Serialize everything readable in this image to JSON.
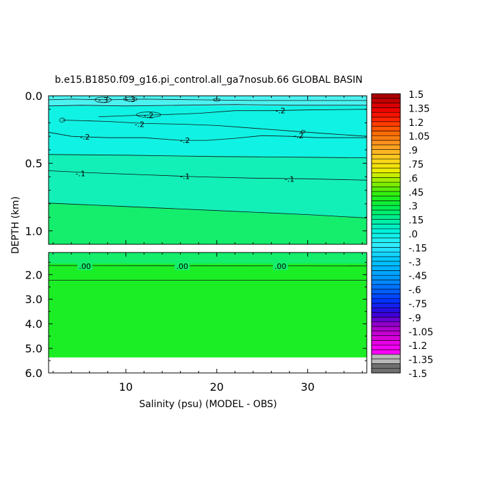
{
  "chart_data": {
    "type": "heatmap",
    "title": "b.e15.B1850.f09_g16.pi_control.all_ga7nosub.66 GLOBAL BASIN",
    "xlabel": "Salinity (psu) (MODEL - OBS)",
    "ylabel": "DEPTH (km)",
    "x_ticks": [
      "10",
      "20",
      "30"
    ],
    "x_tick_values": [
      10,
      20,
      30
    ],
    "xlim": [
      1.5,
      36.5
    ],
    "upper_panel": {
      "ylim": [
        0.0,
        1.1
      ],
      "y_ticks": [
        "0.0",
        "0.5",
        "1.0"
      ],
      "y_tick_values": [
        0.0,
        0.5,
        1.0
      ],
      "contour_labels": [
        {
          "text": "-.3",
          "x": 7.5,
          "y": 0.03
        },
        {
          "text": "-.3",
          "x": 10.5,
          "y": 0.025
        },
        {
          "text": "-.2",
          "x": 12.5,
          "y": 0.145
        },
        {
          "text": "-.2",
          "x": 27.0,
          "y": 0.11
        },
        {
          "text": "-.2",
          "x": 11.5,
          "y": 0.21
        },
        {
          "text": "-.2",
          "x": 5.5,
          "y": 0.305
        },
        {
          "text": "-.2",
          "x": 16.5,
          "y": 0.33
        },
        {
          "text": "-.2",
          "x": 29.0,
          "y": 0.295
        },
        {
          "text": "-.1",
          "x": 5.0,
          "y": 0.575
        },
        {
          "text": "-.1",
          "x": 16.5,
          "y": 0.595
        },
        {
          "text": "-.1",
          "x": 28.0,
          "y": 0.615
        }
      ]
    },
    "lower_panel": {
      "ylim": [
        1.1,
        6.0
      ],
      "y_ticks": [
        "2.0",
        "3.0",
        "4.0",
        "5.0",
        "6.0"
      ],
      "y_tick_values": [
        2.0,
        3.0,
        4.0,
        5.0,
        6.0
      ],
      "data_bottom_depth": 5.37,
      "contour_labels": [
        {
          "text": ".00",
          "x": 5.5,
          "y": 1.65
        },
        {
          "text": ".00",
          "x": 16.2,
          "y": 1.65
        },
        {
          "text": ".00",
          "x": 27.0,
          "y": 1.65
        }
      ]
    },
    "colorbar": {
      "labels": [
        "1.5",
        "1.35",
        "1.2",
        "1.05",
        ".9",
        ".75",
        ".6",
        ".45",
        ".3",
        ".15",
        ".0",
        "-.15",
        "-.3",
        "-.45",
        "-.6",
        "-.75",
        "-.9",
        "-1.05",
        "-1.2",
        "-1.35",
        "-1.5"
      ],
      "min": -1.5,
      "max": 1.5,
      "levels": 60
    },
    "colors": {
      "surface_band": "#4cf2f2",
      "upper_fill": "#10f2e4",
      "mid_fill": "#12f0b8",
      "deep_fill": "#14ee6c",
      "abyss_fill": "#1cee26",
      "missing": "#ffffff"
    }
  }
}
